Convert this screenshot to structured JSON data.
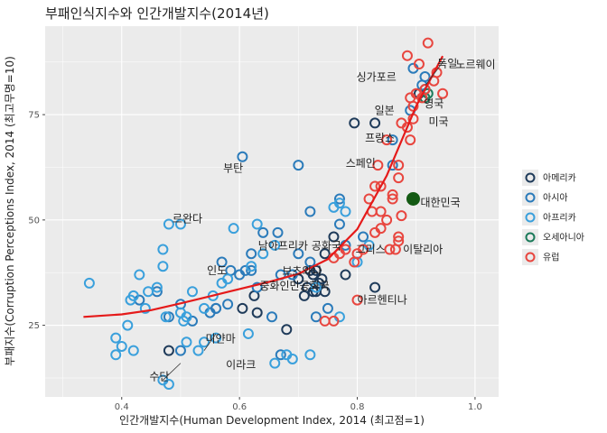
{
  "chart_data": {
    "type": "scatter",
    "title": "부패인식지수와 인간개발지수(2014년)",
    "xlabel": "인간개발지수(Human Development Index, 2014 (최고점=1)",
    "ylabel": "부패지수(Corruption Perceptions Index, 2014 (최고무명=10)",
    "xlim": [
      0.27,
      1.04
    ],
    "ylim": [
      8,
      96
    ],
    "xticks": [
      0.4,
      0.6,
      0.8,
      1.0
    ],
    "xtick_labels": [
      "0.4",
      "0.6",
      "0.8",
      "1.0"
    ],
    "yticks": [
      25,
      50,
      75
    ],
    "ytick_labels": [
      "25",
      "50",
      "75"
    ],
    "grid": true,
    "legend": {
      "placement": "right",
      "entries": [
        {
          "key": "Americas",
          "label": "아메리카",
          "color": "#1f3b5a"
        },
        {
          "key": "Asia",
          "label": "아시아",
          "color": "#2b7bba"
        },
        {
          "key": "Africa",
          "label": "아프리카",
          "color": "#3aa0dc"
        },
        {
          "key": "Oceania",
          "label": "오세아니아",
          "color": "#1b7a5a"
        },
        {
          "key": "Europe",
          "label": "유럽",
          "color": "#e8463f"
        }
      ]
    },
    "series": [
      {
        "name": "아메리카",
        "points": [
          [
            0.915,
            81
          ],
          [
            0.905,
            80
          ],
          [
            0.795,
            73
          ],
          [
            0.83,
            73
          ],
          [
            0.76,
            46
          ],
          [
            0.745,
            42
          ],
          [
            0.73,
            38
          ],
          [
            0.72,
            38
          ],
          [
            0.78,
            37
          ],
          [
            0.735,
            35
          ],
          [
            0.715,
            34
          ],
          [
            0.7,
            36
          ],
          [
            0.725,
            37
          ],
          [
            0.74,
            36
          ],
          [
            0.73,
            33
          ],
          [
            0.725,
            33
          ],
          [
            0.71,
            32
          ],
          [
            0.745,
            33
          ],
          [
            0.83,
            34
          ],
          [
            0.63,
            28
          ],
          [
            0.605,
            29
          ],
          [
            0.68,
            24
          ],
          [
            0.48,
            19
          ],
          [
            0.625,
            32
          ]
        ]
      },
      {
        "name": "아시아",
        "points": [
          [
            0.915,
            84
          ],
          [
            0.91,
            82
          ],
          [
            0.89,
            76
          ],
          [
            0.895,
            86
          ],
          [
            0.86,
            69
          ],
          [
            0.86,
            63
          ],
          [
            0.77,
            55
          ],
          [
            0.81,
            46
          ],
          [
            0.77,
            49
          ],
          [
            0.72,
            52
          ],
          [
            0.7,
            63
          ],
          [
            0.605,
            65
          ],
          [
            0.585,
            38
          ],
          [
            0.61,
            38
          ],
          [
            0.62,
            38
          ],
          [
            0.7,
            42
          ],
          [
            0.6,
            37
          ],
          [
            0.67,
            37
          ],
          [
            0.69,
            37
          ],
          [
            0.55,
            28
          ],
          [
            0.56,
            29
          ],
          [
            0.52,
            26
          ],
          [
            0.58,
            30
          ],
          [
            0.43,
            31
          ],
          [
            0.46,
            33
          ],
          [
            0.5,
            30
          ],
          [
            0.62,
            42
          ],
          [
            0.64,
            47
          ],
          [
            0.665,
            47
          ],
          [
            0.72,
            40
          ],
          [
            0.78,
            44
          ],
          [
            0.655,
            27
          ],
          [
            0.63,
            34
          ],
          [
            0.57,
            40
          ],
          [
            0.67,
            18
          ],
          [
            0.56,
            29
          ],
          [
            0.48,
            27
          ],
          [
            0.5,
            19
          ],
          [
            0.73,
            27
          ],
          [
            0.75,
            29
          ]
        ]
      },
      {
        "name": "아프리카",
        "points": [
          [
            0.345,
            35
          ],
          [
            0.39,
            22
          ],
          [
            0.39,
            18
          ],
          [
            0.4,
            20
          ],
          [
            0.41,
            25
          ],
          [
            0.42,
            19
          ],
          [
            0.415,
            31
          ],
          [
            0.42,
            32
          ],
          [
            0.43,
            37
          ],
          [
            0.44,
            29
          ],
          [
            0.445,
            33
          ],
          [
            0.46,
            34
          ],
          [
            0.47,
            43
          ],
          [
            0.47,
            12
          ],
          [
            0.475,
            27
          ],
          [
            0.48,
            11
          ],
          [
            0.48,
            49
          ],
          [
            0.5,
            49
          ],
          [
            0.5,
            28
          ],
          [
            0.505,
            26
          ],
          [
            0.51,
            27
          ],
          [
            0.51,
            21
          ],
          [
            0.52,
            33
          ],
          [
            0.53,
            19
          ],
          [
            0.54,
            21
          ],
          [
            0.54,
            29
          ],
          [
            0.555,
            32
          ],
          [
            0.56,
            22
          ],
          [
            0.57,
            35
          ],
          [
            0.58,
            36
          ],
          [
            0.59,
            48
          ],
          [
            0.615,
            23
          ],
          [
            0.62,
            39
          ],
          [
            0.63,
            49
          ],
          [
            0.64,
            42
          ],
          [
            0.66,
            16
          ],
          [
            0.66,
            44
          ],
          [
            0.68,
            18
          ],
          [
            0.69,
            17
          ],
          [
            0.72,
            18
          ],
          [
            0.73,
            34
          ],
          [
            0.76,
            53
          ],
          [
            0.77,
            54
          ],
          [
            0.77,
            27
          ],
          [
            0.78,
            52
          ],
          [
            0.8,
            40
          ],
          [
            0.82,
            44
          ],
          [
            0.47,
            39
          ]
        ]
      },
      {
        "name": "오세아니아",
        "points": [
          [
            0.92,
            80
          ],
          [
            0.915,
            79
          ],
          [
            0.895,
            55
          ]
        ]
      },
      {
        "name": "유럽",
        "points": [
          [
            0.91,
            79
          ],
          [
            0.915,
            81
          ],
          [
            0.93,
            83
          ],
          [
            0.945,
            80
          ],
          [
            0.935,
            85
          ],
          [
            0.92,
            92
          ],
          [
            0.9,
            80
          ],
          [
            0.895,
            74
          ],
          [
            0.885,
            89
          ],
          [
            0.905,
            87
          ],
          [
            0.89,
            79
          ],
          [
            0.895,
            77
          ],
          [
            0.875,
            73
          ],
          [
            0.885,
            72
          ],
          [
            0.89,
            69
          ],
          [
            0.87,
            63
          ],
          [
            0.87,
            60
          ],
          [
            0.86,
            56
          ],
          [
            0.84,
            58
          ],
          [
            0.835,
            63
          ],
          [
            0.83,
            58
          ],
          [
            0.825,
            52
          ],
          [
            0.84,
            52
          ],
          [
            0.85,
            50
          ],
          [
            0.83,
            47
          ],
          [
            0.82,
            55
          ],
          [
            0.84,
            48
          ],
          [
            0.855,
            43
          ],
          [
            0.865,
            43
          ],
          [
            0.87,
            45
          ],
          [
            0.875,
            51
          ],
          [
            0.81,
            43
          ],
          [
            0.8,
            42
          ],
          [
            0.795,
            40
          ],
          [
            0.78,
            43
          ],
          [
            0.77,
            42
          ],
          [
            0.76,
            41
          ],
          [
            0.8,
            31
          ],
          [
            0.76,
            26
          ],
          [
            0.745,
            26
          ],
          [
            0.85,
            69
          ],
          [
            0.86,
            55
          ],
          [
            0.87,
            46
          ]
        ]
      }
    ],
    "fit_curve": {
      "color": "#e51a1a",
      "points": [
        [
          0.335,
          27
        ],
        [
          0.4,
          27.6
        ],
        [
          0.45,
          28.6
        ],
        [
          0.5,
          30.2
        ],
        [
          0.55,
          31.9
        ],
        [
          0.6,
          33.6
        ],
        [
          0.65,
          35.3
        ],
        [
          0.7,
          37.2
        ],
        [
          0.75,
          40.7
        ],
        [
          0.8,
          47.8
        ],
        [
          0.85,
          60.5
        ],
        [
          0.9,
          77.0
        ],
        [
          0.945,
          88.9
        ]
      ]
    },
    "annotations": [
      {
        "text": "독일",
        "x": 0.916,
        "y": 82
      },
      {
        "text": "노르웨이",
        "x": 0.944,
        "y": 86
      },
      {
        "text": "싱가포르",
        "x": 0.86,
        "y": 83
      },
      {
        "text": "영국",
        "x": 0.91,
        "y": 78
      },
      {
        "text": "일본",
        "x": 0.86,
        "y": 76
      },
      {
        "text": "미국",
        "x": 0.915,
        "y": 74
      },
      {
        "text": "프랑스",
        "x": 0.85,
        "y": 69
      },
      {
        "text": "스페인",
        "x": 0.834,
        "y": 63
      },
      {
        "text": "대한민국",
        "x": 0.895,
        "y": 55
      },
      {
        "text": "부탄",
        "x": 0.6,
        "y": 64
      },
      {
        "text": "르완다",
        "x": 0.48,
        "y": 49
      },
      {
        "text": "남아프리카 공화국",
        "x": 0.67,
        "y": 43
      },
      {
        "text": "보츠와나",
        "x": 0.7,
        "y": 37
      },
      {
        "text": "그리스",
        "x": 0.82,
        "y": 43
      },
      {
        "text": "이탈리아",
        "x": 0.87,
        "y": 43
      },
      {
        "text": "인도",
        "x": 0.6,
        "y": 38
      },
      {
        "text": "중화인민공화국",
        "x": 0.72,
        "y": 36
      },
      {
        "text": "아르헨티나",
        "x": 0.8,
        "y": 31
      },
      {
        "text": "미얀마",
        "x": 0.53,
        "y": 21
      },
      {
        "text": "이라크",
        "x": 0.62,
        "y": 16
      },
      {
        "text": "수단",
        "x": 0.47,
        "y": 12
      }
    ]
  }
}
